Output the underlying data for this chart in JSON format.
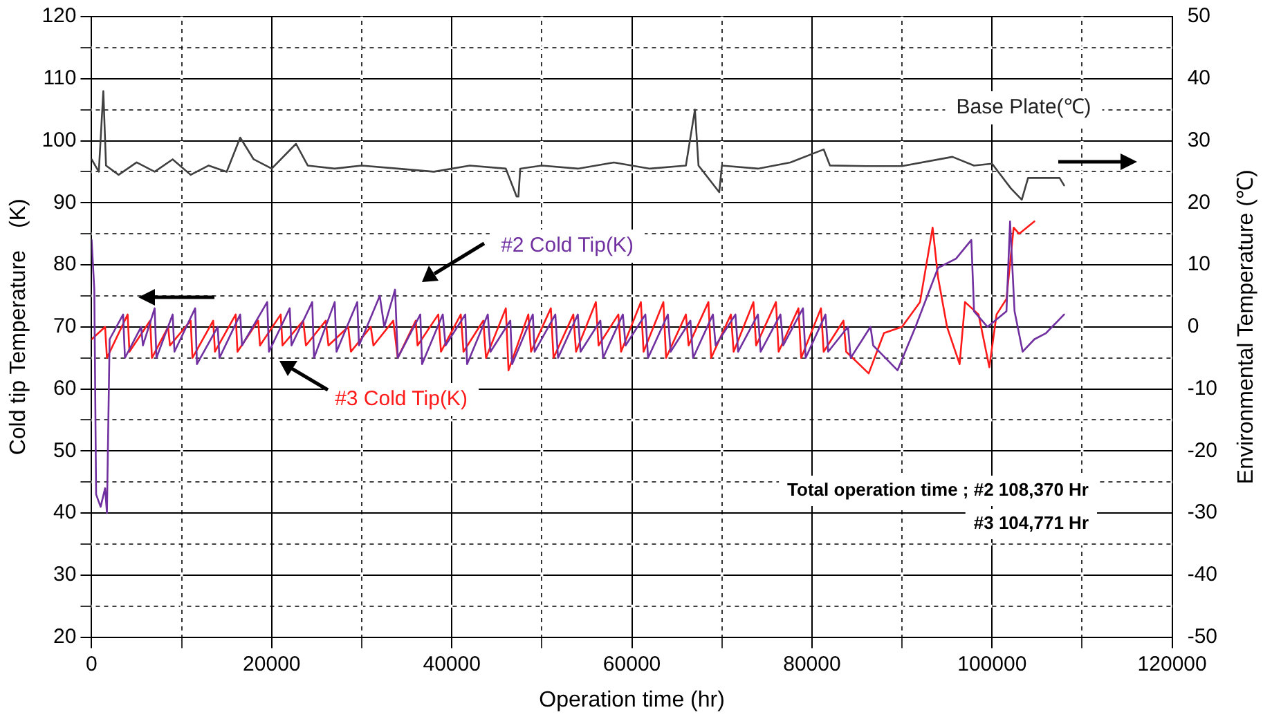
{
  "chart_data": {
    "type": "line",
    "xlabel": "Operation time (hr)",
    "ylabel": "Cold tip Temperature　(K)",
    "y2label": "Environmental Temperature (℃)",
    "xlim": [
      0,
      120000
    ],
    "xticks": [
      0,
      {
        "value": 10000,
        "label": null
      },
      20000,
      {
        "value": 30000,
        "label": null
      },
      40000,
      {
        "value": 50000,
        "label": null
      },
      60000,
      {
        "value": 70000,
        "label": null
      },
      80000,
      {
        "value": 90000,
        "label": null
      },
      100000,
      {
        "value": 110000,
        "label": null
      },
      120000
    ],
    "ylim": [
      20,
      120
    ],
    "yticks": [
      20,
      {
        "value": 25,
        "label": null
      },
      30,
      {
        "value": 35,
        "label": null
      },
      40,
      {
        "value": 45,
        "label": null
      },
      50,
      {
        "value": 55,
        "label": null
      },
      60,
      {
        "value": 65,
        "label": null
      },
      70,
      {
        "value": 75,
        "label": null
      },
      80,
      {
        "value": 85,
        "label": null
      },
      90,
      {
        "value": 95,
        "label": null
      },
      100,
      {
        "value": 105,
        "label": null
      },
      110,
      {
        "value": 115,
        "label": null
      },
      120
    ],
    "y2lim": [
      -50,
      50
    ],
    "y2ticks": [
      -50,
      -40,
      -30,
      -20,
      -10,
      0,
      10,
      20,
      30,
      40,
      50
    ],
    "grid": true,
    "legend": false,
    "marker": "none",
    "line_style": "solid",
    "series": [
      {
        "name": "#2 Cold Tip(K)",
        "color": "#7030a0",
        "x": [
          0,
          300,
          500,
          1000,
          1500,
          1700,
          2000,
          3500,
          3700,
          5500,
          5700,
          7000,
          7200,
          9000,
          9200,
          11500,
          11700,
          14000,
          14200,
          16500,
          16700,
          19500,
          19700,
          22000,
          22200,
          24500,
          24700,
          27000,
          27200,
          29500,
          29700,
          32000,
          32500,
          33700,
          34000,
          36500,
          36700,
          39000,
          39300,
          41500,
          41700,
          44000,
          44300,
          46500,
          46700,
          49000,
          49200,
          51500,
          51800,
          54000,
          54300,
          56500,
          56800,
          59000,
          59300,
          61500,
          61800,
          64000,
          64300,
          66500,
          66800,
          69000,
          69300,
          71500,
          71800,
          74000,
          74300,
          76500,
          76800,
          79000,
          79300,
          81500,
          81800,
          84000,
          84300,
          86500,
          86800,
          89500,
          91500,
          94000,
          96000,
          97700,
          98000,
          99500,
          101600,
          102000,
          102500,
          103400,
          104700,
          106000,
          108000
        ],
        "values": [
          84,
          76,
          43,
          41,
          44,
          40,
          68,
          72,
          65,
          70,
          67,
          73,
          65,
          72,
          66,
          73,
          64,
          70,
          65,
          72,
          67,
          74,
          66,
          73,
          67,
          74,
          65,
          74,
          66,
          74,
          67,
          75,
          70,
          76,
          65,
          72,
          64,
          72,
          67,
          72,
          64,
          72,
          66,
          71,
          64,
          72,
          66,
          72,
          65,
          72,
          66,
          71,
          65,
          72,
          67,
          72,
          65,
          72,
          66,
          71,
          65,
          72,
          67,
          72,
          66,
          72,
          66,
          72,
          67,
          73,
          65,
          72,
          66,
          70,
          65,
          70,
          67,
          63,
          70,
          79.5,
          81,
          84,
          72.5,
          70,
          72.5,
          87,
          72.5,
          66,
          68,
          69,
          72
        ]
      },
      {
        "name": "#3 Cold Tip(K)",
        "color": "#ff1a1a",
        "x": [
          0,
          1500,
          1700,
          4000,
          4200,
          6500,
          6700,
          8500,
          8700,
          11000,
          11200,
          13500,
          13700,
          16000,
          16200,
          18500,
          18700,
          21000,
          21200,
          23500,
          23800,
          26000,
          26300,
          28500,
          28800,
          31000,
          31300,
          33500,
          34000,
          36000,
          36200,
          38500,
          38800,
          41000,
          41300,
          43500,
          43800,
          46000,
          46300,
          48500,
          48800,
          51000,
          51300,
          53500,
          53800,
          56000,
          56300,
          58500,
          58800,
          61000,
          61300,
          63500,
          63800,
          66000,
          66300,
          68500,
          68800,
          71000,
          71300,
          73500,
          73800,
          76000,
          76300,
          78500,
          78800,
          81000,
          81300,
          83500,
          83800,
          86300,
          88000,
          90000,
          92000,
          93400,
          94000,
          95000,
          96400,
          97000,
          98500,
          99700,
          100500,
          101600,
          102400,
          103000,
          104700
        ],
        "values": [
          68,
          70,
          65,
          72,
          66,
          71,
          65,
          70,
          67,
          71,
          65,
          71,
          66,
          72,
          66,
          71,
          67,
          72,
          67,
          71,
          67,
          71,
          67,
          70,
          66,
          70,
          67,
          71,
          65,
          71,
          67,
          72,
          66,
          72,
          66,
          71,
          65,
          73,
          63,
          72,
          66,
          73,
          65,
          72,
          66,
          74,
          67,
          72,
          66,
          74,
          66,
          74,
          65,
          72,
          67,
          74,
          65,
          72,
          66,
          74,
          67,
          74,
          66,
          73,
          65,
          73,
          66,
          71,
          66,
          62.5,
          69,
          70,
          74,
          86,
          78,
          70,
          64,
          74,
          72,
          63.5,
          72,
          74.5,
          86,
          85,
          87
        ]
      },
      {
        "name": "Base Plate(℃)",
        "color": "#404040",
        "axis": "y2",
        "x": [
          0,
          800,
          1300,
          1600,
          3000,
          5000,
          7000,
          9000,
          11000,
          13000,
          15000,
          16500,
          18000,
          20000,
          22700,
          24000,
          27000,
          30000,
          34000,
          38000,
          42000,
          46000,
          47200,
          47400,
          47600,
          50000,
          54000,
          58000,
          62000,
          66000,
          67000,
          67400,
          69700,
          70000,
          74000,
          77600,
          81300,
          82000,
          86000,
          90000,
          95600,
          98000,
          100000,
          102100,
          103300,
          104000,
          106000,
          107500,
          108000
        ],
        "values": [
          27,
          25,
          38,
          26,
          24.5,
          26.5,
          25,
          27,
          24.5,
          26,
          25,
          30.5,
          27,
          25.5,
          29.5,
          26,
          25.5,
          26,
          25.5,
          25,
          26,
          25.5,
          21,
          21,
          25.5,
          26,
          25.5,
          26.5,
          25.5,
          26,
          35,
          26,
          21.7,
          26,
          25.5,
          26.5,
          28.6,
          26,
          25.9,
          25.9,
          27.4,
          26,
          26.3,
          22.3,
          20.5,
          24,
          24,
          24,
          22.8
        ]
      }
    ],
    "annotations": [
      "Total operation time ; #2 108,370 Hr",
      "#3 104,771 Hr"
    ]
  }
}
